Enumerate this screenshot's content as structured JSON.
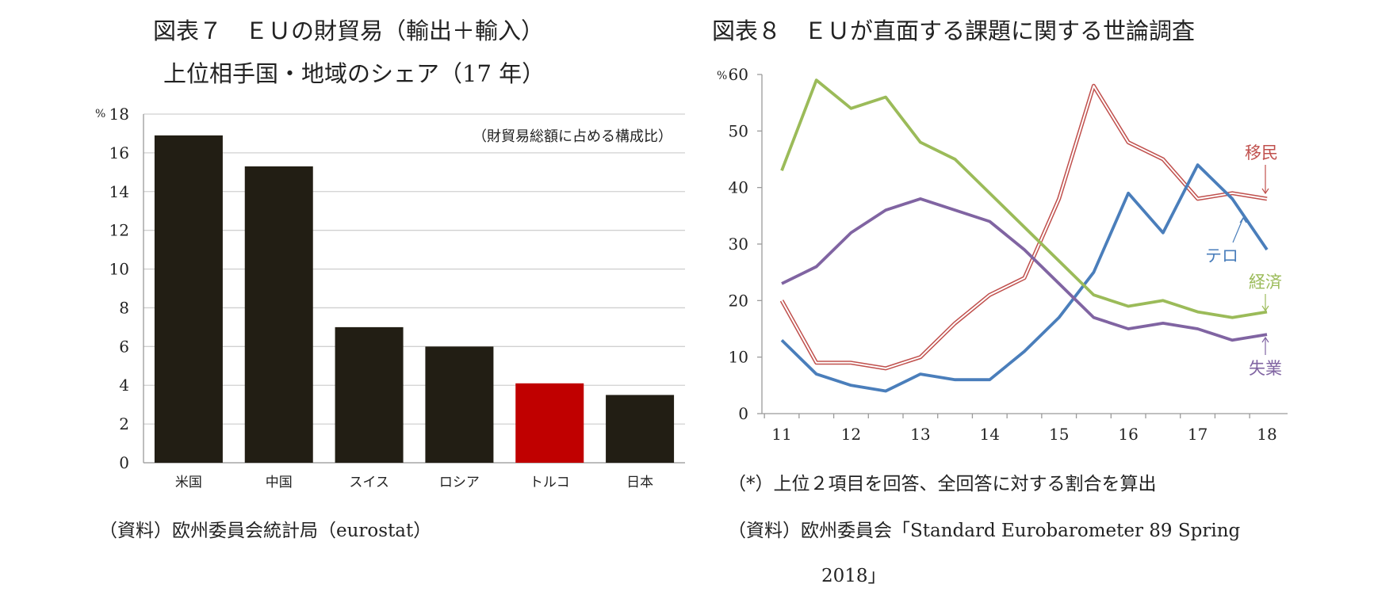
{
  "chart_data": [
    {
      "type": "bar",
      "title": "図表７　ＥＵの財貿易（輸出＋輸入）",
      "subtitle": "上位相手国・地域のシェア（17 年）",
      "unit_label": "%",
      "annotation": "（財貿易総額に占める構成比）",
      "categories": [
        "米国",
        "中国",
        "スイス",
        "ロシア",
        "トルコ",
        "日本"
      ],
      "values": [
        16.9,
        15.3,
        7.0,
        6.0,
        4.1,
        3.5
      ],
      "bar_colors": [
        "#221e14",
        "#221e14",
        "#221e14",
        "#221e14",
        "#c00000",
        "#221e14"
      ],
      "ylim": [
        0,
        18
      ],
      "yticks": [
        "0",
        "2",
        "4",
        "6",
        "8",
        "10",
        "12",
        "14",
        "16",
        "18"
      ],
      "grid": true,
      "legend": "none",
      "source": "（資料）欧州委員会統計局（eurostat）"
    },
    {
      "type": "line",
      "title": "図表８　ＥＵが直面する課題に関する世論調査",
      "unit_label": "%",
      "x": [
        11,
        11.5,
        12,
        12.5,
        13,
        13.5,
        14,
        14.5,
        15,
        15.5,
        16,
        16.5,
        17,
        17.5,
        18
      ],
      "xticks": [
        "11",
        "12",
        "13",
        "14",
        "15",
        "16",
        "17",
        "18"
      ],
      "ylim": [
        0,
        60
      ],
      "yticks": [
        "0",
        "10",
        "20",
        "30",
        "40",
        "50",
        "60"
      ],
      "series": [
        {
          "name": "移民",
          "color": "#c0504d",
          "style": "double",
          "values": [
            20,
            9,
            9,
            8,
            10,
            16,
            21,
            24,
            38,
            58,
            48,
            45,
            38,
            39,
            38
          ]
        },
        {
          "name": "テロ",
          "color": "#4a7ebb",
          "values": [
            13,
            7,
            5,
            4,
            7,
            6,
            6,
            11,
            17,
            25,
            39,
            32,
            44,
            38,
            29
          ]
        },
        {
          "name": "経済",
          "color": "#9bbb59",
          "values": [
            43,
            59,
            54,
            56,
            48,
            45,
            39,
            33,
            27,
            21,
            19,
            20,
            18,
            17,
            18
          ]
        },
        {
          "name": "失業",
          "color": "#8064a2",
          "values": [
            23,
            26,
            32,
            36,
            38,
            36,
            34,
            29,
            23,
            17,
            15,
            16,
            15,
            13,
            14
          ]
        }
      ],
      "legend": "inline-labels-right",
      "note": "（*）上位２項目を回答、全回答に対する割合を算出",
      "source_line1": "（資料）欧州委員会「Standard Eurobarometer 89 Spring",
      "source_line2": "2018」"
    }
  ]
}
